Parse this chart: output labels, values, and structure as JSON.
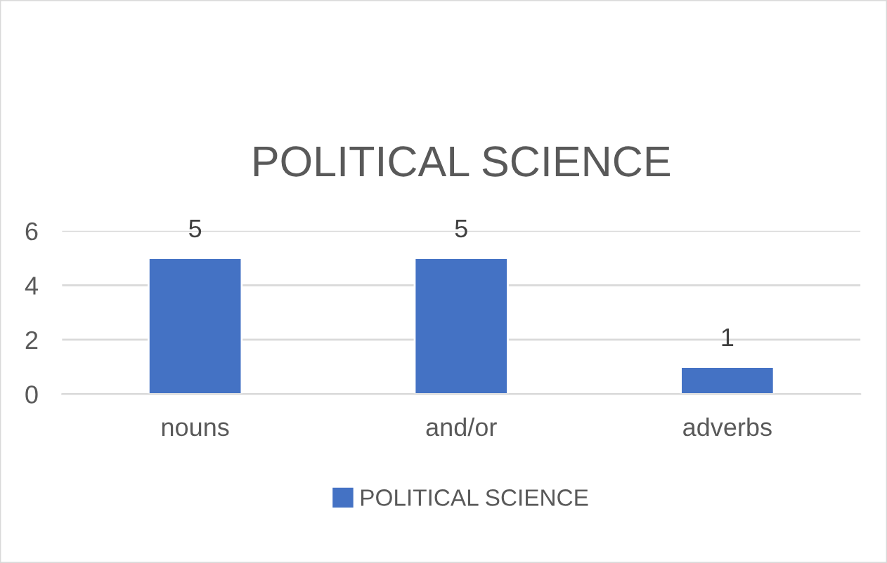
{
  "chart_data": {
    "type": "bar",
    "title": "POLITICAL SCIENCE",
    "categories": [
      "nouns",
      "and/or",
      "adverbs"
    ],
    "series": [
      {
        "name": "POLITICAL SCIENCE",
        "color": "#4472c4",
        "values": [
          5,
          5,
          1
        ]
      }
    ],
    "ylim": [
      0,
      6
    ],
    "yticks": [
      0,
      2,
      4,
      6
    ],
    "grid": "y",
    "legend": "bottom",
    "data_labels": true
  }
}
